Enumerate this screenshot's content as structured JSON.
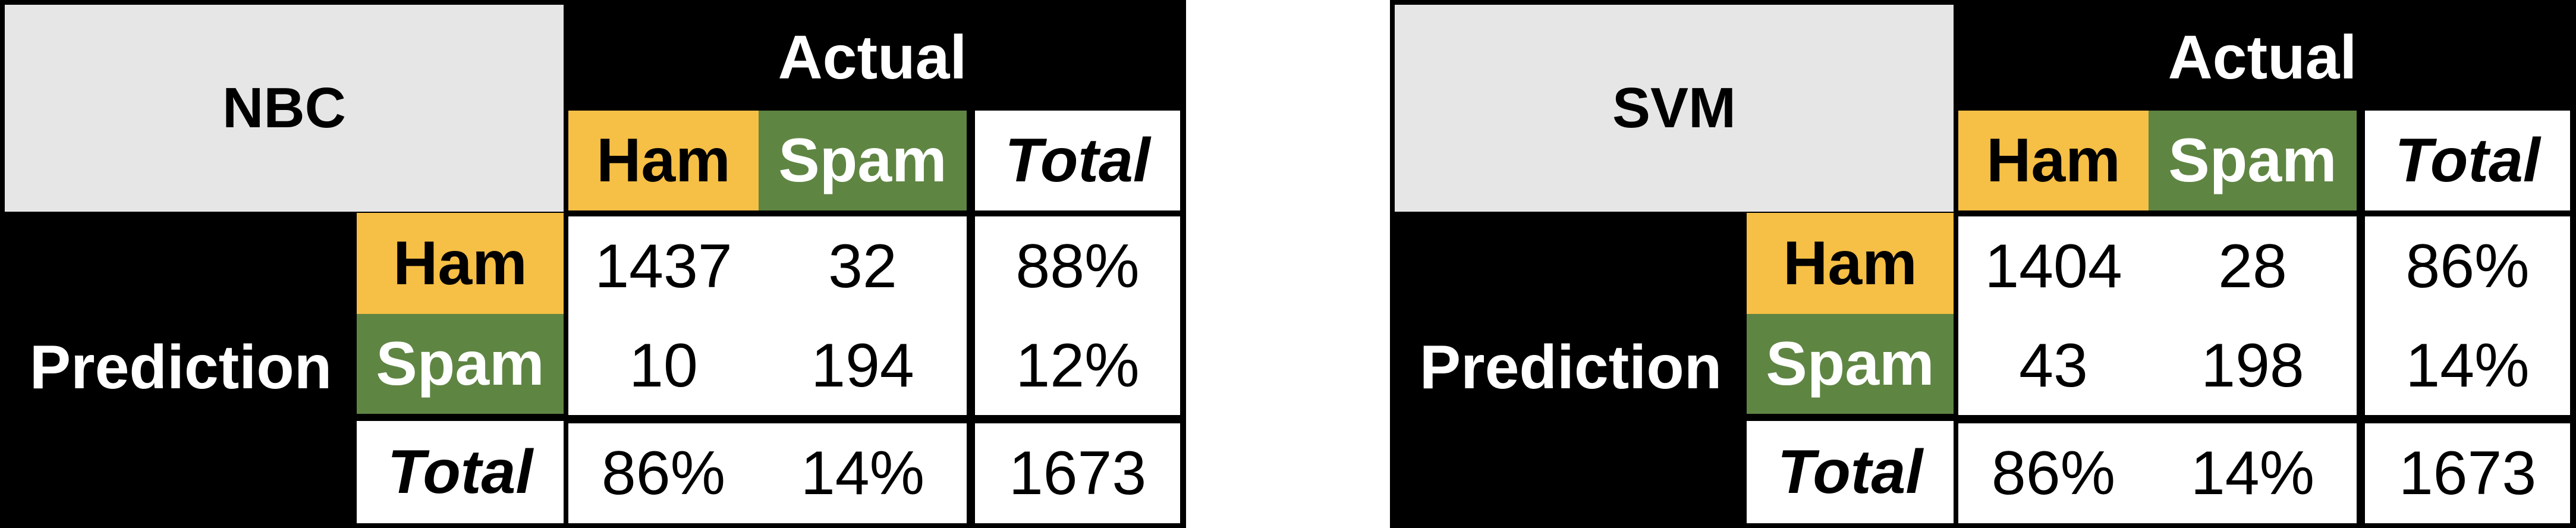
{
  "colors": {
    "ham": "#f6bf45",
    "spam": "#5f8543",
    "header_bg": "#e6e6e6",
    "frame": "#000000"
  },
  "chart_data": [
    {
      "type": "table",
      "name": "NBC",
      "column_group_label": "Actual",
      "row_group_label": "Prediction",
      "columns": [
        "Ham",
        "Spam",
        "Total"
      ],
      "rows": [
        {
          "label": "Ham",
          "values": [
            "1437",
            "32",
            "88%"
          ]
        },
        {
          "label": "Spam",
          "values": [
            "10",
            "194",
            "12%"
          ]
        },
        {
          "label": "Total",
          "values": [
            "86%",
            "14%",
            "1673"
          ]
        }
      ]
    },
    {
      "type": "table",
      "name": "SVM",
      "column_group_label": "Actual",
      "row_group_label": "Prediction",
      "columns": [
        "Ham",
        "Spam",
        "Total"
      ],
      "rows": [
        {
          "label": "Ham",
          "values": [
            "1404",
            "28",
            "86%"
          ]
        },
        {
          "label": "Spam",
          "values": [
            "43",
            "198",
            "14%"
          ]
        },
        {
          "label": "Total",
          "values": [
            "86%",
            "14%",
            "1673"
          ]
        }
      ]
    }
  ]
}
